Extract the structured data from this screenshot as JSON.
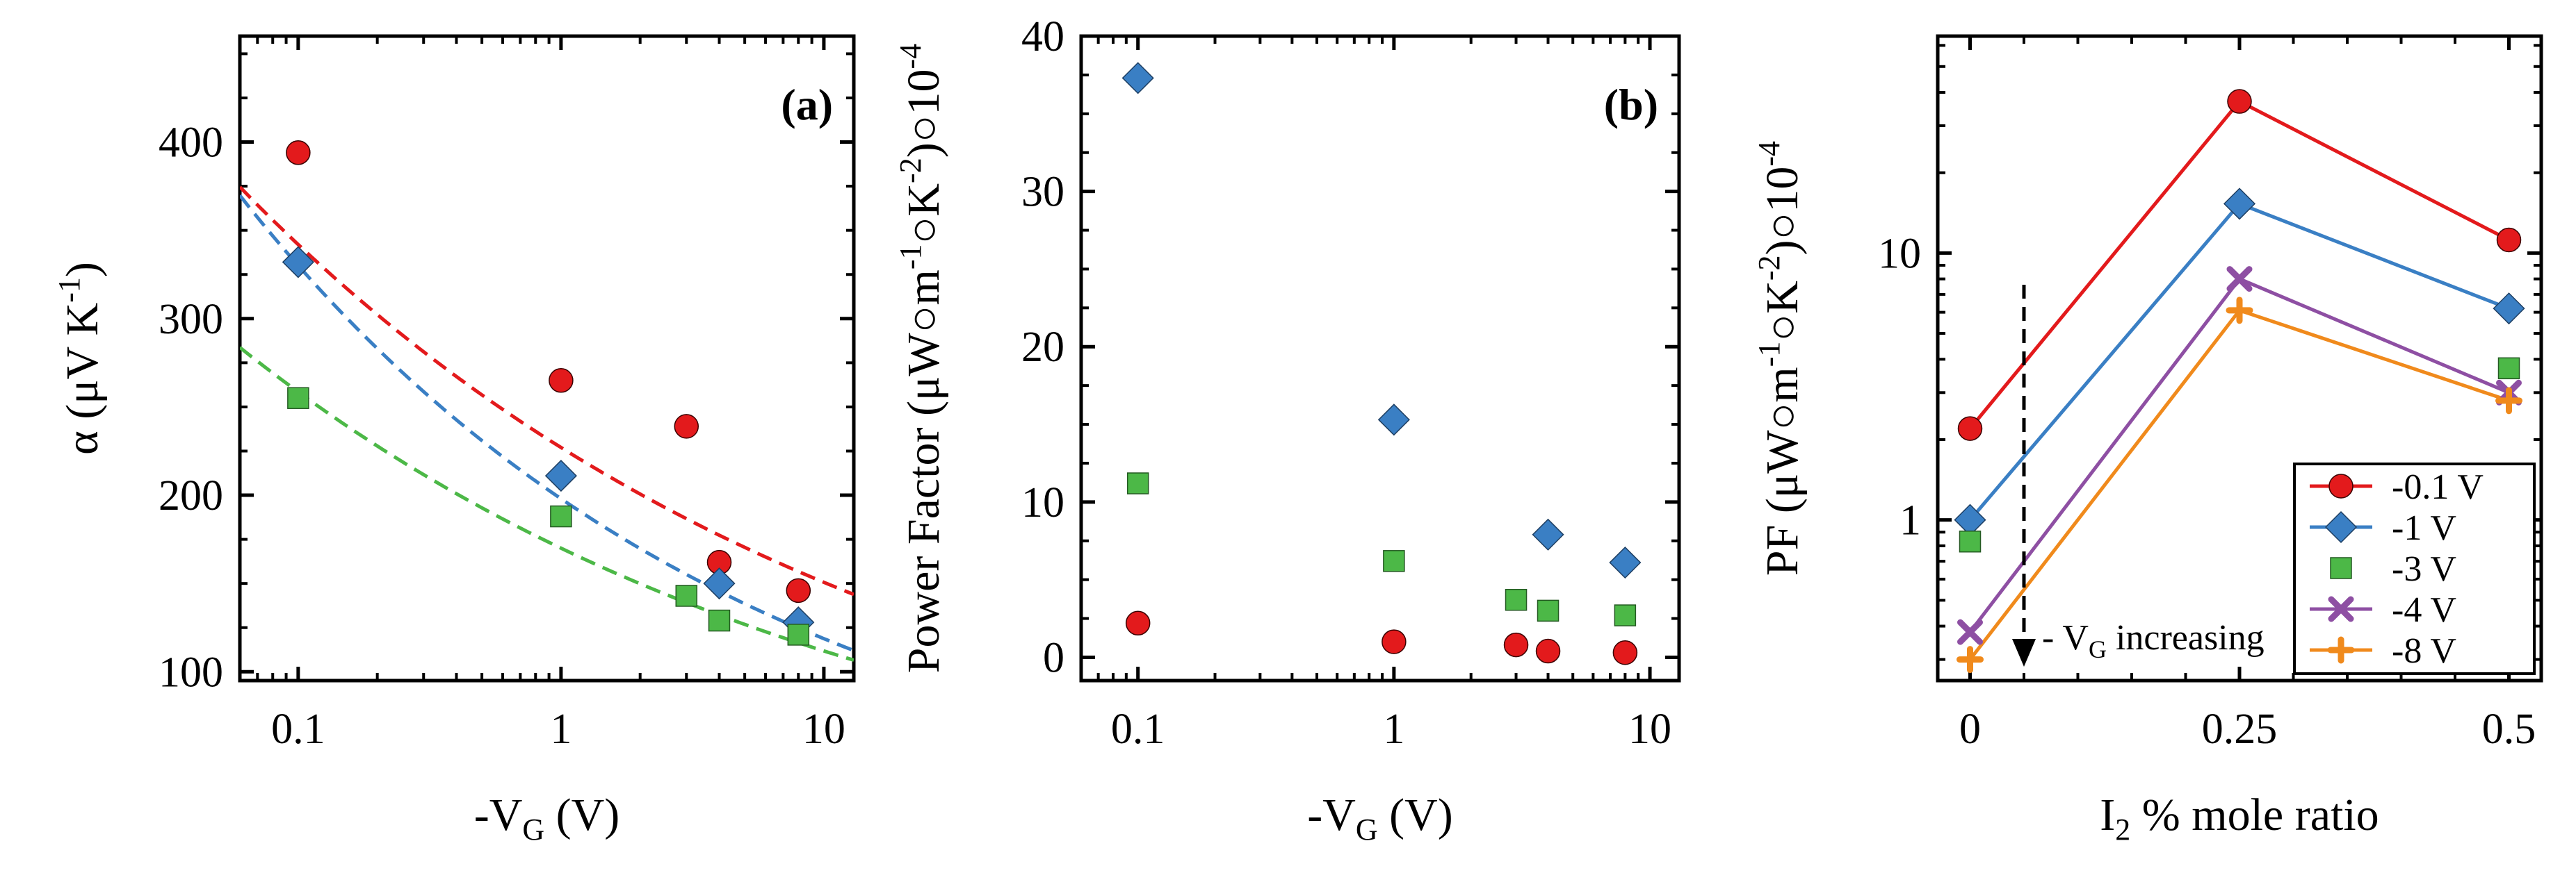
{
  "chart_data": [
    {
      "panel": "a",
      "type": "scatter",
      "panel_label": "(a)",
      "xscale": "log",
      "xlim": [
        0.06,
        13
      ],
      "ylim": [
        95,
        460
      ],
      "xticks": [
        0.1,
        1,
        10
      ],
      "xtick_labels": [
        "0.1",
        "1",
        "10"
      ],
      "yticks": [
        100,
        200,
        300,
        400
      ],
      "ytick_labels": [
        "100",
        "200",
        "300",
        "400"
      ],
      "xlabel": {
        "pre": "-V",
        "sub": "G",
        "post": " (V)"
      },
      "ylabel": {
        "pre": "α (μV K",
        "sup": "-1",
        "post": ")"
      },
      "series": [
        {
          "name": "-0.1 V",
          "color": "#e31a1c",
          "marker": "circle",
          "x": [
            0.1,
            1,
            3,
            4,
            8
          ],
          "y": [
            394,
            265,
            239,
            162,
            146
          ],
          "fit": {
            "a": 227,
            "b": -0.178
          }
        },
        {
          "name": "-1 V",
          "color": "#3a7fc4",
          "marker": "diamond",
          "x": [
            0.1,
            1,
            4,
            8
          ],
          "y": [
            332,
            211,
            150,
            128
          ],
          "fit": {
            "a": 198,
            "b": -0.222
          }
        },
        {
          "name": "-3 V",
          "color": "#4cb847",
          "marker": "square",
          "x": [
            0.1,
            1,
            3,
            4,
            8
          ],
          "y": [
            255,
            188,
            143,
            129,
            121
          ],
          "fit": {
            "a": 170,
            "b": -0.182
          }
        }
      ]
    },
    {
      "panel": "b",
      "type": "scatter",
      "panel_label": "(b)",
      "xscale": "log",
      "xlim": [
        0.06,
        13
      ],
      "ylim": [
        -1.5,
        40
      ],
      "xticks": [
        0.1,
        1,
        10
      ],
      "xtick_labels": [
        "0.1",
        "1",
        "10"
      ],
      "yticks": [
        0,
        10,
        20,
        30,
        40
      ],
      "ytick_labels": [
        "0",
        "10",
        "20",
        "30",
        "40"
      ],
      "xlabel": {
        "pre": "-V",
        "sub": "G",
        "post": " (V)"
      },
      "ylabel": {
        "pre": "Power Factor (μW○m",
        "sup1": "-1",
        "mid": "○K",
        "sup2": "-2",
        "post": ")○10",
        "sup3": "-4"
      },
      "series": [
        {
          "name": "-0.1 V",
          "color": "#e31a1c",
          "marker": "circle",
          "x": [
            0.1,
            1,
            3,
            4,
            8
          ],
          "y": [
            2.2,
            1.0,
            0.8,
            0.4,
            0.3
          ]
        },
        {
          "name": "-1 V",
          "color": "#3a7fc4",
          "marker": "diamond",
          "x": [
            0.1,
            1,
            4,
            8
          ],
          "y": [
            37.3,
            15.3,
            7.9,
            6.1
          ]
        },
        {
          "name": "-3 V",
          "color": "#4cb847",
          "marker": "square",
          "x": [
            0.1,
            1,
            3,
            4,
            8
          ],
          "y": [
            11.2,
            6.2,
            3.7,
            3.0,
            2.7
          ]
        }
      ]
    },
    {
      "panel": "c",
      "type": "line",
      "yscale": "log",
      "xlim": [
        -0.03,
        0.53
      ],
      "ylim": [
        0.25,
        65
      ],
      "xticks": [
        0,
        0.25,
        0.5
      ],
      "xtick_labels": [
        "0",
        "0.25",
        "0.5"
      ],
      "yticks": [
        1,
        10
      ],
      "ytick_labels": [
        "1",
        "10"
      ],
      "xlabel": {
        "pre": "I",
        "sub": "2",
        "post": " % mole ratio"
      },
      "ylabel": {
        "pre": "PF (μW○m",
        "sup1": "-1",
        "mid": "○K",
        "sup2": "-2",
        "post": ")○10",
        "sup3": "-4"
      },
      "annotation": {
        "pre": "- V",
        "sub": "G",
        "post": " increasing"
      },
      "legend": "bottom-right",
      "series": [
        {
          "name": "-0.1 V",
          "color": "#e31a1c",
          "marker": "circle",
          "line": true,
          "x": [
            0,
            0.25,
            0.5
          ],
          "y": [
            2.2,
            37.0,
            11.2
          ]
        },
        {
          "name": "-1 V",
          "color": "#3a7fc4",
          "marker": "diamond",
          "line": true,
          "x": [
            0,
            0.25,
            0.5
          ],
          "y": [
            1.0,
            15.3,
            6.2
          ]
        },
        {
          "name": "-3 V",
          "color": "#4cb847",
          "marker": "square",
          "line": false,
          "x": [
            0,
            0.5
          ],
          "y": [
            0.83,
            3.7
          ]
        },
        {
          "name": "-4 V",
          "color": "#8e4fa3",
          "marker": "x",
          "line": true,
          "x": [
            0,
            0.25,
            0.5
          ],
          "y": [
            0.38,
            8.0,
            3.0
          ]
        },
        {
          "name": "-8 V",
          "color": "#f08a1c",
          "marker": "plus",
          "line": true,
          "x": [
            0,
            0.25,
            0.5
          ],
          "y": [
            0.3,
            6.1,
            2.8
          ]
        }
      ]
    }
  ]
}
